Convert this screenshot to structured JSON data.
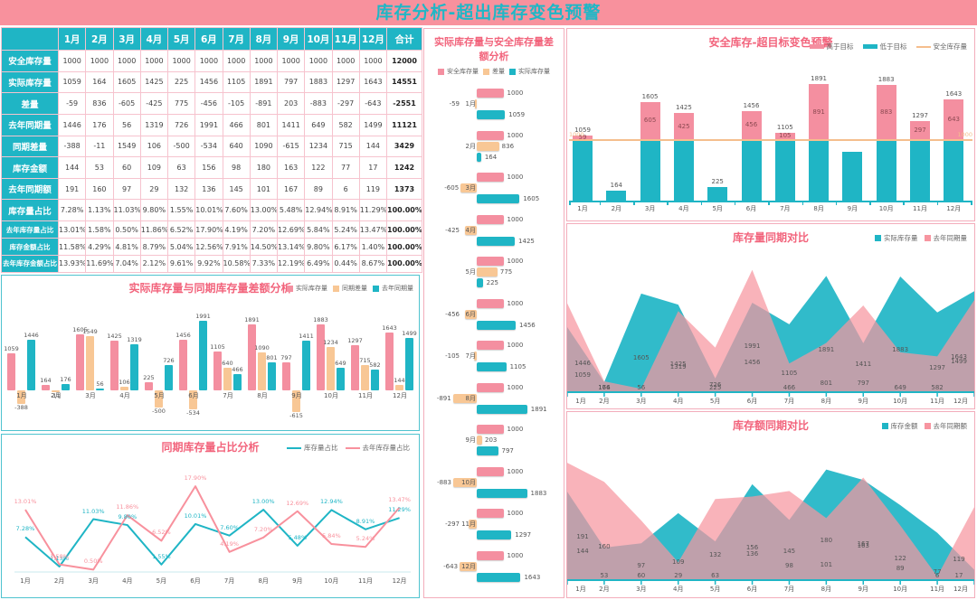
{
  "page_title": "库存分析-超出库存变色预警",
  "months": [
    "1月",
    "2月",
    "3月",
    "4月",
    "5月",
    "6月",
    "7月",
    "8月",
    "9月",
    "10月",
    "11月",
    "12月"
  ],
  "colors": {
    "pink": "#F48FA0",
    "pink_line": "#F8919D",
    "pink_area": "#F795A0",
    "teal": "#1FB5C5",
    "orange": "#F8C795",
    "orange_line": "#F5BE8D",
    "titlebar_bg": "#F8919D",
    "titlebar_text": "#1FB7C6",
    "chart_title": "#F2647C",
    "table_header_bg": "#1FB5C5",
    "table_border": "#F6C3CE",
    "label_dark": "#555555",
    "excess_label": "#8D4A52"
  },
  "table": {
    "corner_label": "",
    "total_header": "合计",
    "rows": [
      {
        "label": "安全库存量",
        "values": [
          "1000",
          "1000",
          "1000",
          "1000",
          "1000",
          "1000",
          "1000",
          "1000",
          "1000",
          "1000",
          "1000",
          "1000"
        ],
        "total": "12000"
      },
      {
        "label": "实际库存量",
        "values": [
          "1059",
          "164",
          "1605",
          "1425",
          "225",
          "1456",
          "1105",
          "1891",
          "797",
          "1883",
          "1297",
          "1643"
        ],
        "total": "14551"
      },
      {
        "label": "差量",
        "values": [
          "-59",
          "836",
          "-605",
          "-425",
          "775",
          "-456",
          "-105",
          "-891",
          "203",
          "-883",
          "-297",
          "-643"
        ],
        "total": "-2551"
      },
      {
        "label": "去年同期量",
        "values": [
          "1446",
          "176",
          "56",
          "1319",
          "726",
          "1991",
          "466",
          "801",
          "1411",
          "649",
          "582",
          "1499"
        ],
        "total": "11121"
      },
      {
        "label": "同期差量",
        "values": [
          "-388",
          "-11",
          "1549",
          "106",
          "-500",
          "-534",
          "640",
          "1090",
          "-615",
          "1234",
          "715",
          "144"
        ],
        "total": "3429"
      },
      {
        "label": "库存金额",
        "values": [
          "144",
          "53",
          "60",
          "109",
          "63",
          "156",
          "98",
          "180",
          "163",
          "122",
          "77",
          "17"
        ],
        "total": "1242"
      },
      {
        "label": "去年同期额",
        "values": [
          "191",
          "160",
          "97",
          "29",
          "132",
          "136",
          "145",
          "101",
          "167",
          "89",
          "6",
          "119"
        ],
        "total": "1373"
      },
      {
        "label": "库存量占比",
        "values": [
          "7.28%",
          "1.13%",
          "11.03%",
          "9.80%",
          "1.55%",
          "10.01%",
          "7.60%",
          "13.00%",
          "5.48%",
          "12.94%",
          "8.91%",
          "11.29%"
        ],
        "total": "100.00%"
      },
      {
        "label": "去年库存量占比",
        "values": [
          "13.01%",
          "1.58%",
          "0.50%",
          "11.86%",
          "6.52%",
          "17.90%",
          "4.19%",
          "7.20%",
          "12.69%",
          "5.84%",
          "5.24%",
          "13.47%"
        ],
        "total": "100.00%"
      },
      {
        "label": "库存金额占比",
        "values": [
          "11.58%",
          "4.29%",
          "4.81%",
          "8.79%",
          "5.04%",
          "12.56%",
          "7.91%",
          "14.50%",
          "13.14%",
          "9.80%",
          "6.17%",
          "1.40%"
        ],
        "total": "100.00%"
      },
      {
        "label": "去年库存金额占比",
        "values": [
          "13.93%",
          "11.69%",
          "7.04%",
          "2.12%",
          "9.61%",
          "9.92%",
          "10.58%",
          "7.33%",
          "12.19%",
          "6.49%",
          "0.44%",
          "8.67%"
        ],
        "total": "100.00%"
      }
    ]
  },
  "chart_data": [
    {
      "id": "safety-gap-by-month",
      "type": "bar",
      "orientation": "horizontal",
      "title": "实际库存量与安全库存量差额分析",
      "legend": [
        "安全库存量",
        "差量",
        "实际库存量"
      ],
      "categories": [
        "1月",
        "2月",
        "3月",
        "4月",
        "5月",
        "6月",
        "7月",
        "8月",
        "9月",
        "10月",
        "11月",
        "12月"
      ],
      "series": [
        {
          "name": "安全库存量",
          "values": [
            1000,
            1000,
            1000,
            1000,
            1000,
            1000,
            1000,
            1000,
            1000,
            1000,
            1000,
            1000
          ]
        },
        {
          "name": "差量",
          "values": [
            -59,
            836,
            -605,
            -425,
            775,
            -456,
            -105,
            -891,
            203,
            -883,
            -297,
            -643
          ]
        },
        {
          "name": "实际库存量",
          "values": [
            1059,
            164,
            1605,
            1425,
            225,
            1456,
            1105,
            1891,
            797,
            1883,
            1297,
            1643
          ]
        }
      ]
    },
    {
      "id": "actual-vs-yoy-gap",
      "type": "bar",
      "title": "实际库存量与同期库存量差额分析",
      "legend": [
        "实际库存量",
        "同期差量",
        "去年同期量"
      ],
      "categories": [
        "1月",
        "2月",
        "3月",
        "4月",
        "5月",
        "6月",
        "7月",
        "8月",
        "9月",
        "10月",
        "11月",
        "12月"
      ],
      "series": [
        {
          "name": "实际库存量",
          "values": [
            1059,
            164,
            1605,
            1425,
            225,
            1456,
            1105,
            1891,
            797,
            1883,
            1297,
            1643
          ]
        },
        {
          "name": "同期差量",
          "values": [
            -388,
            -11,
            1549,
            106,
            -500,
            -534,
            640,
            1090,
            -615,
            1234,
            715,
            144
          ]
        },
        {
          "name": "去年同期量",
          "values": [
            1446,
            176,
            56,
            1319,
            726,
            1991,
            466,
            801,
            1411,
            649,
            582,
            1499
          ]
        }
      ],
      "ylim": [
        -700,
        2100
      ]
    },
    {
      "id": "yoy-ratio-lines",
      "type": "line",
      "title": "同期库存量占比分析",
      "legend": [
        "库存量占比",
        "去年库存量占比"
      ],
      "unit": "%",
      "categories": [
        "1月",
        "2月",
        "3月",
        "4月",
        "5月",
        "6月",
        "7月",
        "8月",
        "9月",
        "10月",
        "11月",
        "12月"
      ],
      "series": [
        {
          "name": "库存量占比",
          "values": [
            7.28,
            1.13,
            11.03,
            9.8,
            1.55,
            10.01,
            7.6,
            13.0,
            5.48,
            12.94,
            8.91,
            11.29
          ]
        },
        {
          "name": "去年库存量占比",
          "values": [
            13.01,
            1.58,
            0.5,
            11.86,
            6.52,
            17.9,
            4.19,
            7.2,
            12.69,
            5.84,
            5.24,
            13.47
          ]
        }
      ],
      "ylim": [
        0,
        18
      ]
    },
    {
      "id": "safety-over-target-warning",
      "type": "bar",
      "stacked": true,
      "title": "安全库存-超目标变色预警",
      "legend": [
        "高于目标",
        "低于目标",
        "安全库存量"
      ],
      "threshold": 1000,
      "threshold_label": "1000",
      "categories": [
        "1月",
        "2月",
        "3月",
        "4月",
        "5月",
        "6月",
        "7月",
        "8月",
        "9月",
        "10月",
        "11月",
        "12月"
      ],
      "values": [
        1059,
        164,
        1605,
        1425,
        225,
        1456,
        1105,
        1891,
        797,
        1883,
        1297,
        1643
      ],
      "ylim": [
        0,
        2000
      ]
    },
    {
      "id": "qty-yoy-compare",
      "type": "area",
      "title": "库存量同期对比",
      "legend": [
        "实际库存量",
        "去年同期量"
      ],
      "categories": [
        "1月",
        "2月",
        "3月",
        "4月",
        "5月",
        "6月",
        "7月",
        "8月",
        "9月",
        "10月",
        "11月",
        "12月"
      ],
      "series": [
        {
          "name": "实际库存量",
          "values": [
            1059,
            164,
            1605,
            1425,
            225,
            1456,
            1105,
            1891,
            797,
            1883,
            1297,
            1643
          ]
        },
        {
          "name": "去年同期量",
          "values": [
            1446,
            176,
            56,
            1319,
            726,
            1991,
            466,
            801,
            1411,
            649,
            582,
            1499
          ]
        }
      ],
      "ylim": [
        0,
        2000
      ]
    },
    {
      "id": "amount-yoy-compare",
      "type": "area",
      "title": "库存额同期对比",
      "legend": [
        "库存金额",
        "去年同期额"
      ],
      "categories": [
        "1月",
        "2月",
        "3月",
        "4月",
        "5月",
        "6月",
        "7月",
        "8月",
        "9月",
        "10月",
        "11月",
        "12月"
      ],
      "series": [
        {
          "name": "库存金额",
          "values": [
            144,
            53,
            60,
            109,
            63,
            156,
            98,
            180,
            163,
            122,
            77,
            17
          ]
        },
        {
          "name": "去年同期额",
          "values": [
            191,
            160,
            97,
            29,
            132,
            136,
            145,
            101,
            167,
            89,
            6,
            119
          ]
        }
      ],
      "ylim": [
        0,
        200
      ]
    }
  ]
}
